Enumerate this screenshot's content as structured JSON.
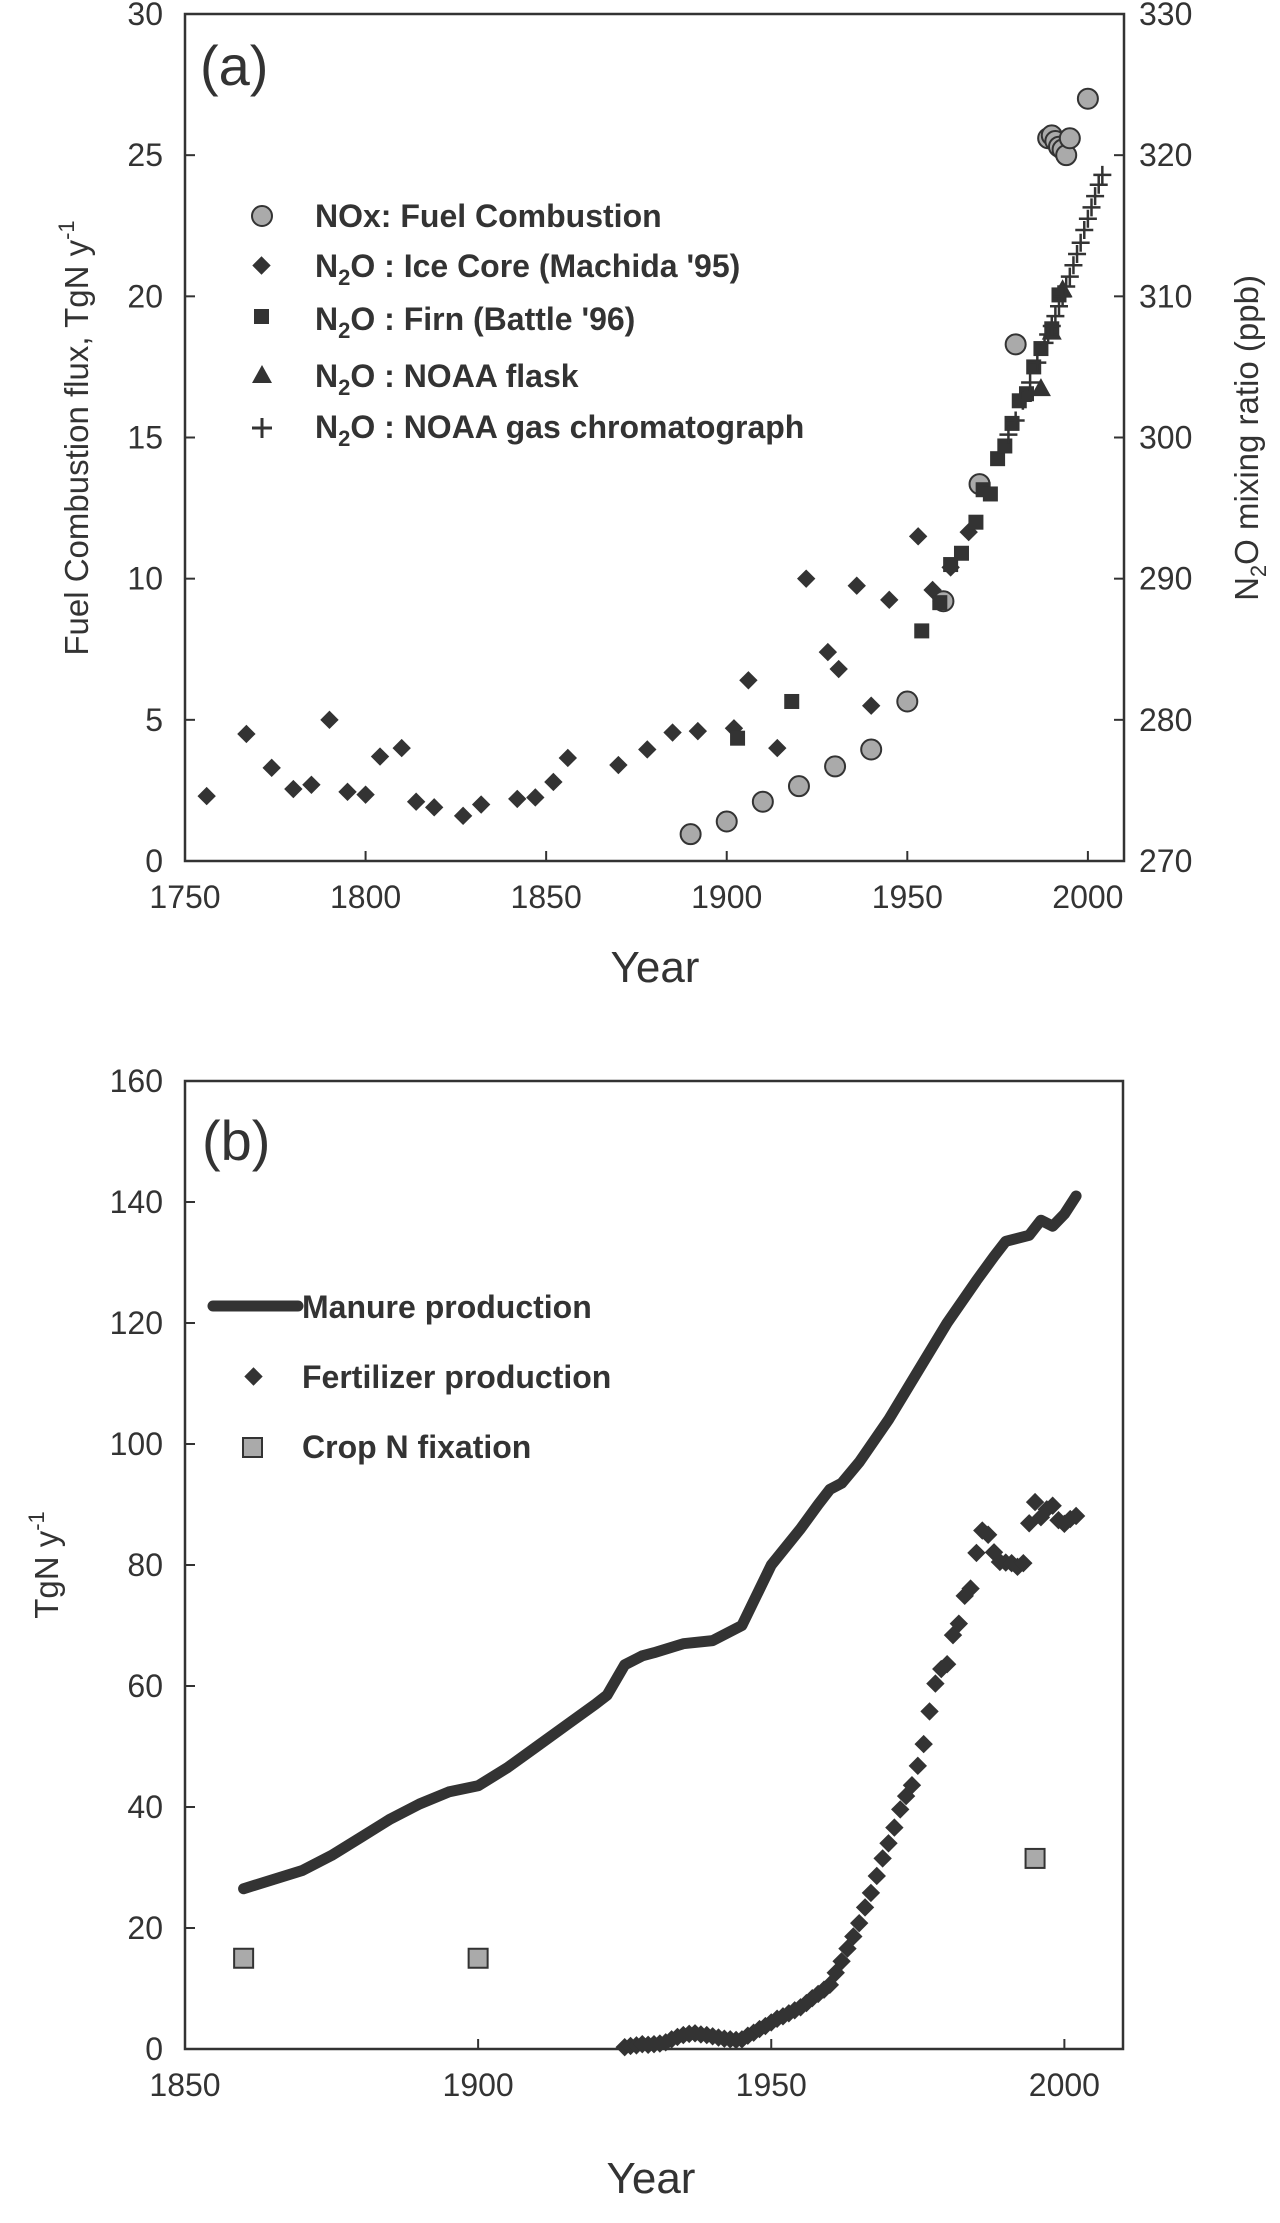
{
  "colors": {
    "axis": "#333333",
    "marker_dark": "#333333",
    "marker_grey": "#aaaaaa",
    "background": "#ffffff"
  },
  "chart_data": [
    {
      "type": "scatter",
      "panel_label": "(a)",
      "xlabel": "Year",
      "ylabel": "Fuel Combustion flux, TgN y-1",
      "ylabel_parts": {
        "main": "Fuel Combustion flux, TgN  y",
        "sup": "-1"
      },
      "y2label": "N2O mixing ratio (ppb)",
      "y2label_parts": {
        "pre": "N",
        "sub": "2",
        "post": "O mixing ratio (ppb)"
      },
      "xlim": [
        1750,
        2010
      ],
      "ylim": [
        0,
        30
      ],
      "y2lim": [
        270,
        330
      ],
      "xticks": [
        1750,
        1800,
        1850,
        1900,
        1950,
        2000
      ],
      "yticks": [
        0,
        5,
        10,
        15,
        20,
        25,
        30
      ],
      "y2ticks": [
        270,
        280,
        290,
        300,
        310,
        320,
        330
      ],
      "legend_position": "top-left",
      "legend": [
        {
          "label": "NOx: Fuel Combustion",
          "marker": "circle"
        },
        {
          "pre": "N",
          "sub": "2",
          "post": "O : Ice Core (Machida '95)",
          "marker": "diamond"
        },
        {
          "pre": "N",
          "sub": "2",
          "post": "O : Firn (Battle '96)",
          "marker": "square"
        },
        {
          "pre": "N",
          "sub": "2",
          "post": "O : NOAA flask",
          "marker": "triangle"
        },
        {
          "pre": "N",
          "sub": "2",
          "post": "O : NOAA gas chromatograph",
          "marker": "plus"
        }
      ],
      "series": [
        {
          "name": "NOx: Fuel Combustion",
          "axis": "left",
          "marker": "circle",
          "x": [
            1890,
            1900,
            1910,
            1920,
            1930,
            1940,
            1950,
            1960,
            1970,
            1980,
            1989,
            1990,
            1991,
            1992,
            1993,
            1994,
            1995,
            2000
          ],
          "y": [
            0.95,
            1.4,
            2.1,
            2.65,
            3.35,
            3.95,
            5.65,
            9.2,
            13.35,
            18.3,
            25.6,
            25.7,
            25.5,
            25.3,
            25.2,
            25.0,
            25.6,
            27.0
          ]
        },
        {
          "name": "N2O : Ice Core (Machida '95)",
          "axis": "right",
          "marker": "diamond",
          "x": [
            1756,
            1767,
            1774,
            1780,
            1785,
            1790,
            1795,
            1800,
            1804,
            1810,
            1814,
            1819,
            1827,
            1832,
            1842,
            1847,
            1852,
            1856,
            1870,
            1878,
            1885,
            1892,
            1902,
            1906,
            1914,
            1922,
            1928,
            1931,
            1936,
            1940,
            1945,
            1953,
            1957,
            1962,
            1967
          ],
          "y": [
            274.6,
            279.0,
            276.6,
            275.1,
            275.4,
            280.0,
            274.9,
            274.7,
            277.4,
            278.0,
            274.2,
            273.8,
            273.2,
            274.0,
            274.4,
            274.5,
            275.6,
            277.3,
            276.8,
            277.9,
            279.1,
            279.2,
            279.4,
            282.8,
            278.0,
            290.0,
            284.8,
            283.6,
            289.5,
            281.0,
            288.5,
            293.0,
            289.2,
            290.8,
            293.3
          ]
        },
        {
          "name": "N2O : Firn (Battle '96)",
          "axis": "right",
          "marker": "square",
          "x": [
            1903,
            1918,
            1954,
            1959,
            1962,
            1965,
            1969,
            1971,
            1973,
            1975,
            1977,
            1979,
            1981,
            1983,
            1985,
            1987,
            1990,
            1992
          ],
          "y": [
            278.7,
            281.3,
            286.3,
            288.3,
            291.0,
            291.8,
            294.0,
            296.3,
            296.0,
            298.5,
            299.4,
            301.0,
            302.6,
            303.1,
            305.0,
            306.3,
            307.7,
            310.1
          ]
        },
        {
          "name": "N2O : NOAA flask",
          "axis": "right",
          "marker": "triangle",
          "x": [
            1987,
            1990,
            1993
          ],
          "y": [
            303.5,
            307.5,
            310.5
          ]
        },
        {
          "name": "N2O : NOAA gas chromatograph",
          "axis": "right",
          "marker": "plus",
          "x": [
            1978,
            1980,
            1982,
            1984,
            1986,
            1988,
            1989,
            1990,
            1991,
            1992,
            1993,
            1994,
            1995,
            1996,
            1997,
            1998,
            1999,
            2000,
            2001,
            2002,
            2003,
            2004
          ],
          "y": [
            300.2,
            301.2,
            302.6,
            303.9,
            305.3,
            306.7,
            307.3,
            307.9,
            308.6,
            309.3,
            310.0,
            310.7,
            311.4,
            312.2,
            313.0,
            313.8,
            314.7,
            315.5,
            316.3,
            317.1,
            317.9,
            318.6
          ]
        }
      ]
    },
    {
      "type": "line",
      "panel_label": "(b)",
      "xlabel": "Year",
      "ylabel": "TgN y-1",
      "ylabel_parts": {
        "main": "TgN  y",
        "sup": "-1"
      },
      "xlim": [
        1850,
        2010
      ],
      "ylim": [
        0,
        160
      ],
      "xticks": [
        1850,
        1900,
        1950,
        2000
      ],
      "yticks": [
        0,
        20,
        40,
        60,
        80,
        100,
        120,
        140,
        160
      ],
      "legend_position": "top-left",
      "legend": [
        {
          "label": "Manure production",
          "marker": "line"
        },
        {
          "label": "Fertilizer production",
          "marker": "diamond"
        },
        {
          "label": "Crop N fixation",
          "marker": "square"
        }
      ],
      "series": [
        {
          "name": "Manure production",
          "marker": "line",
          "x": [
            1860,
            1865,
            1870,
            1875,
            1880,
            1885,
            1890,
            1895,
            1900,
            1905,
            1910,
            1915,
            1920,
            1922,
            1925,
            1928,
            1930,
            1935,
            1940,
            1945,
            1950,
            1955,
            1958,
            1960,
            1962,
            1965,
            1970,
            1975,
            1980,
            1985,
            1988,
            1990,
            1992,
            1994,
            1996,
            1997,
            1998,
            2000,
            2002
          ],
          "y": [
            26.5,
            28,
            29.5,
            32,
            35,
            38,
            40.5,
            42.5,
            43.5,
            46.5,
            50,
            53.5,
            57,
            58.5,
            63.5,
            65,
            65.5,
            67,
            67.5,
            70,
            80,
            86,
            90,
            92.5,
            93.5,
            97,
            104,
            112,
            120,
            127,
            131,
            133.5,
            134,
            134.5,
            137,
            136.5,
            136,
            138,
            141
          ]
        },
        {
          "name": "Fertilizer production",
          "marker": "diamond",
          "x": [
            1925,
            1926,
            1927,
            1928,
            1929,
            1930,
            1931,
            1932,
            1933,
            1934,
            1935,
            1936,
            1937,
            1938,
            1939,
            1940,
            1941,
            1942,
            1943,
            1944,
            1945,
            1946,
            1947,
            1948,
            1949,
            1950,
            1951,
            1952,
            1953,
            1954,
            1955,
            1956,
            1957,
            1958,
            1959,
            1960,
            1961,
            1962,
            1963,
            1964,
            1965,
            1966,
            1967,
            1968,
            1969,
            1970,
            1971,
            1972,
            1973,
            1974,
            1975,
            1976,
            1977,
            1978,
            1979,
            1980,
            1981,
            1982,
            1983,
            1984,
            1985,
            1986,
            1987,
            1988,
            1989,
            1990,
            1991,
            1992,
            1993,
            1994,
            1995,
            1996,
            1997,
            1998,
            1999,
            2000,
            2001,
            2002
          ],
          "y": [
            0.3,
            0.5,
            0.6,
            0.8,
            0.7,
            0.8,
            0.9,
            1.1,
            1.6,
            2.0,
            2.3,
            2.5,
            2.6,
            2.4,
            2.3,
            2.1,
            1.9,
            1.7,
            1.6,
            1.5,
            1.6,
            2.2,
            2.7,
            3.3,
            3.8,
            4.4,
            5.0,
            5.4,
            5.9,
            6.4,
            6.9,
            7.6,
            8.4,
            9.1,
            9.8,
            10.6,
            12.6,
            14.5,
            16.6,
            18.6,
            20.8,
            23.4,
            25.8,
            28.6,
            31.5,
            34.0,
            36.6,
            39.6,
            41.8,
            43.6,
            46.8,
            50.4,
            55.8,
            60.4,
            62.8,
            63.6,
            68.4,
            70.3,
            74.9,
            76.1,
            82.0,
            85.7,
            85.0,
            82.1,
            80.5,
            80.4,
            80.3,
            79.7,
            80.3,
            86.9,
            90.4,
            87.9,
            89.2,
            89.8,
            87.4,
            86.8,
            87.6,
            88.1
          ]
        },
        {
          "name": "Crop N fixation",
          "marker": "square",
          "x": [
            1860,
            1900,
            1995
          ],
          "y": [
            15,
            15,
            31.5
          ]
        }
      ]
    }
  ]
}
